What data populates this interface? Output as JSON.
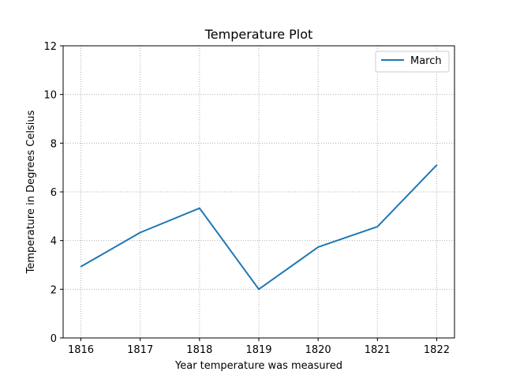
{
  "chart_data": {
    "type": "line",
    "title": "Temperature Plot",
    "xlabel": "Year temperature was measured",
    "ylabel": "Temperature in Degrees Celsius",
    "categories": [
      "1816",
      "1817",
      "1818",
      "1819",
      "1820",
      "1821",
      "1822"
    ],
    "x": [
      1816,
      1817,
      1818,
      1819,
      1820,
      1821,
      1822
    ],
    "series": [
      {
        "name": "March",
        "values": [
          2.93,
          4.33,
          5.33,
          2.0,
          3.73,
          4.57,
          7.1
        ],
        "color": "#1f77b4"
      }
    ],
    "xlim": [
      1815.7,
      1822.3
    ],
    "ylim": [
      0,
      12
    ],
    "yticks": [
      "0",
      "2",
      "4",
      "6",
      "8",
      "10",
      "12"
    ],
    "grid": true,
    "grid_style": "dotted",
    "legend_placement": "top-right"
  }
}
